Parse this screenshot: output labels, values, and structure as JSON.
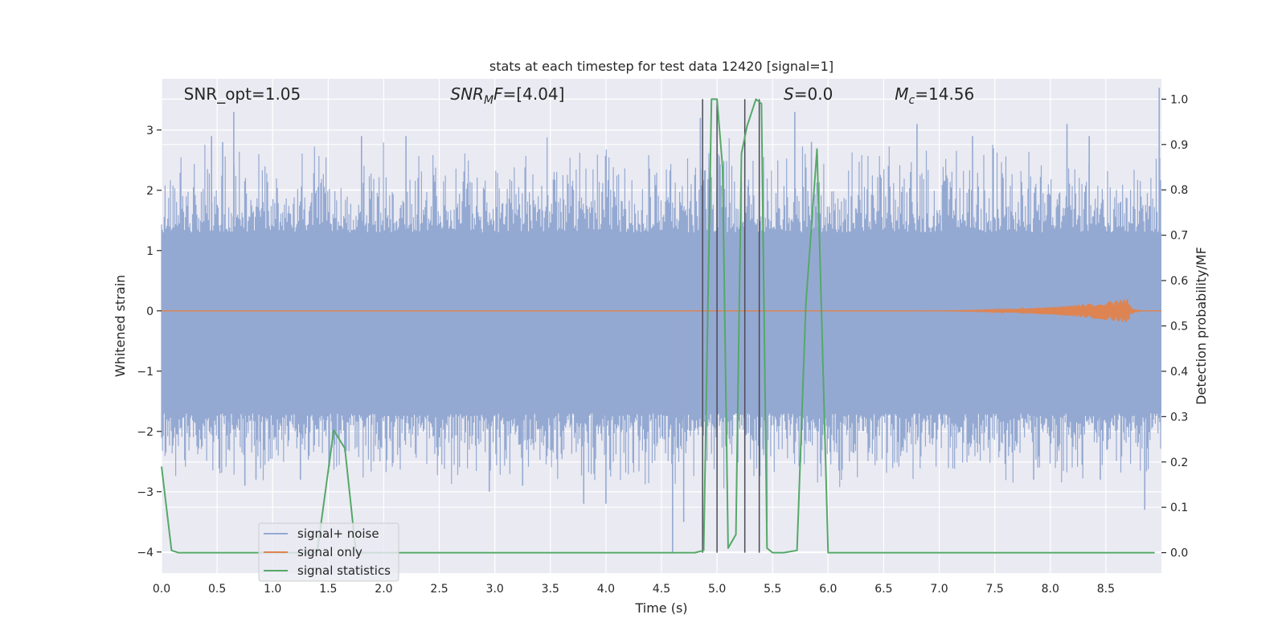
{
  "chart_data": {
    "type": "line",
    "title": "stats at each timestep for test data 12420 [signal=1]",
    "xlabel": "Time (s)",
    "ylabel_left": "Whitened strain",
    "ylabel_right": "Detection probability/MF",
    "xlim": [
      0.0,
      9.0
    ],
    "ylim_left": [
      -4.35,
      3.85
    ],
    "ylim_right": [
      -0.045,
      1.045
    ],
    "x_ticks": [
      "0.0",
      "0.5",
      "1.0",
      "1.5",
      "2.0",
      "2.5",
      "3.0",
      "3.5",
      "4.0",
      "4.5",
      "5.0",
      "5.5",
      "6.0",
      "6.5",
      "7.0",
      "7.5",
      "8.0",
      "8.5"
    ],
    "y_ticks_left": [
      {
        "v": 3,
        "t": "3"
      },
      {
        "v": 2,
        "t": "2"
      },
      {
        "v": 1,
        "t": "1"
      },
      {
        "v": 0,
        "t": "0"
      },
      {
        "v": -1,
        "t": "−1"
      },
      {
        "v": -2,
        "t": "−2"
      },
      {
        "v": -3,
        "t": "−3"
      },
      {
        "v": -4,
        "t": "−4"
      }
    ],
    "y_ticks_right": [
      "0.0",
      "0.1",
      "0.2",
      "0.3",
      "0.4",
      "0.5",
      "0.6",
      "0.7",
      "0.8",
      "0.9",
      "1.0"
    ],
    "grid": true,
    "legend_position": "lower-left",
    "annotations": [
      {
        "plain": "SNR_opt=1.05",
        "base": "",
        "sub": "",
        "rest": "",
        "t_x": 0.2
      },
      {
        "plain": "",
        "base": "SNR",
        "sub": "M",
        "rest": "F=[4.04]",
        "t_x": 2.6
      },
      {
        "plain": "",
        "base": "S",
        "sub": "",
        "rest": "=0.0",
        "t_x": 5.6
      },
      {
        "plain": "",
        "base": "M",
        "sub": "c",
        "rest": "=14.56",
        "t_x": 6.6
      }
    ],
    "series": [
      {
        "name": "signal+ noise",
        "axis": "left",
        "color": "#94a9d2",
        "style": "dense noise",
        "band_envelope": [
          1.3,
          -1.7
        ],
        "peak_envelope": [
          2.5,
          -2.6
        ],
        "extreme_spikes": [
          [
            0.45,
            2.9
          ],
          [
            0.55,
            2.8
          ],
          [
            0.65,
            3.3
          ],
          [
            0.6,
            -2.3
          ],
          [
            0.75,
            -2.9
          ],
          [
            0.85,
            -2.8
          ],
          [
            1.25,
            -2.8
          ],
          [
            1.8,
            2.9
          ],
          [
            2.2,
            2.9
          ],
          [
            2.95,
            -3.0
          ],
          [
            3.25,
            -2.9
          ],
          [
            3.8,
            -3.2
          ],
          [
            4.0,
            -3.2
          ],
          [
            4.6,
            -4.0
          ],
          [
            4.7,
            -3.5
          ],
          [
            4.85,
            3.2
          ],
          [
            5.45,
            -3.5
          ],
          [
            5.7,
            3.3
          ],
          [
            5.85,
            2.8
          ],
          [
            6.8,
            3.1
          ],
          [
            7.3,
            2.9
          ],
          [
            7.85,
            -2.8
          ],
          [
            8.15,
            3.1
          ],
          [
            8.35,
            2.9
          ],
          [
            8.45,
            -2.8
          ],
          [
            8.85,
            -3.3
          ],
          [
            8.98,
            3.7
          ]
        ]
      },
      {
        "name": "signal only",
        "axis": "left",
        "color": "#dd8452",
        "style": "chirp",
        "chirp_start_x": 6.5,
        "chirp_peak_x": 8.7,
        "chirp_peak_amplitude": 0.2
      },
      {
        "name": "signal statistics",
        "axis": "right",
        "color": "#55a868",
        "x": [
          0.0,
          0.09,
          0.15,
          1.4,
          1.55,
          1.65,
          1.75,
          4.8,
          4.88,
          4.95,
          5.0,
          5.05,
          5.1,
          5.17,
          5.22,
          5.27,
          5.35,
          5.4,
          5.45,
          5.5,
          5.6,
          5.72,
          5.8,
          5.9,
          6.0,
          8.94
        ],
        "values": [
          0.19,
          0.005,
          0.0,
          0.0,
          0.27,
          0.23,
          0.0,
          0.0,
          0.005,
          1.0,
          1.0,
          0.85,
          0.01,
          0.04,
          0.88,
          0.94,
          1.0,
          0.99,
          0.01,
          0.0,
          0.0,
          0.005,
          0.55,
          0.89,
          0.0,
          0.0
        ]
      }
    ],
    "vertical_lines": {
      "color": "#4a4a55",
      "x": [
        4.87,
        5.0,
        5.25,
        5.38
      ]
    },
    "legend": [
      "signal+ noise",
      "signal only",
      "signal statistics"
    ]
  }
}
